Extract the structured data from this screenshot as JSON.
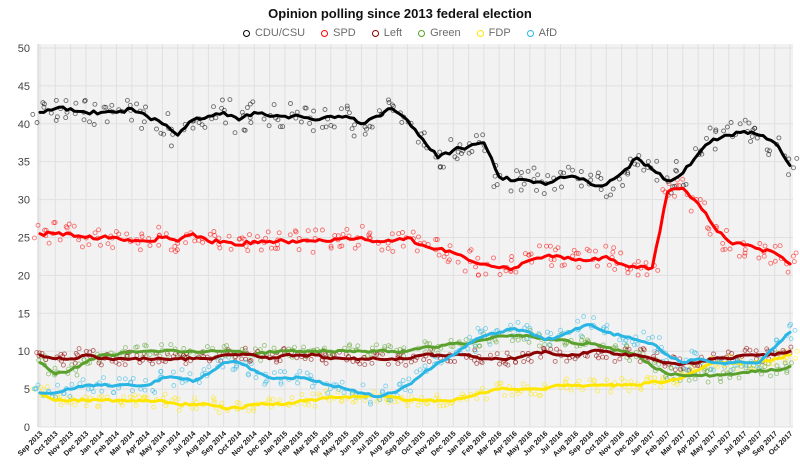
{
  "chart_data": {
    "type": "line",
    "style": "scatter points with thick trend lines (poll results + moving average)",
    "title": "Opinion polling since 2013 federal election",
    "xlabel": "",
    "ylabel": "",
    "ylim": [
      0,
      50
    ],
    "y_ticks": [
      0,
      5,
      10,
      15,
      20,
      25,
      30,
      35,
      40,
      45,
      50
    ],
    "grid": true,
    "legend_position": "top",
    "plot_background": "#f2f2f2",
    "gridline_color": "#e0e0e0",
    "axis_label_color": "#444444",
    "x_tick_labels": [
      "Sep 2013",
      "Oct 2013",
      "Nov 2013",
      "Dec 2013",
      "Jan 2014",
      "Feb 2014",
      "Mar 2014",
      "Apr 2014",
      "May 2014",
      "Jun 2014",
      "Jul 2014",
      "Aug 2014",
      "Sep 2014",
      "Oct 2014",
      "Nov 2014",
      "Dec 2014",
      "Jan 2015",
      "Feb 2015",
      "Mar 2015",
      "Apr 2015",
      "May 2015",
      "Jun 2015",
      "Jul 2015",
      "Aug 2015",
      "Sep 2015",
      "Oct 2015",
      "Nov 2015",
      "Dec 2015",
      "Jan 2016",
      "Feb 2016",
      "Mar 2016",
      "Apr 2016",
      "May 2016",
      "Jun 2016",
      "Jul 2016",
      "Aug 2016",
      "Sep 2016",
      "Oct 2016",
      "Nov 2016",
      "Dec 2016",
      "Jan 2017",
      "Feb 2017",
      "Mar 2017",
      "Apr 2017",
      "May 2017",
      "Jun 2017",
      "Jul 2017",
      "Aug 2017",
      "Sep 2017",
      "Oct 2017"
    ],
    "series": [
      {
        "name": "CDU/CSU",
        "color": "#000000",
        "values": [
          41.5,
          42,
          42,
          41.5,
          41.5,
          41.5,
          42,
          41,
          40,
          38.5,
          40.5,
          41,
          41.5,
          40.5,
          41.5,
          41,
          41,
          41,
          40.5,
          41,
          41,
          40,
          41,
          42,
          40.5,
          38,
          35.5,
          36.5,
          37,
          37.5,
          33,
          32.5,
          32.5,
          32,
          33,
          33,
          32,
          32,
          33.5,
          35.5,
          34,
          32.5,
          33.5,
          36,
          38,
          38.5,
          39,
          38.5,
          37.5,
          34.5
        ]
      },
      {
        "name": "SPD",
        "color": "#ff0000",
        "values": [
          25.5,
          25.5,
          25.5,
          25,
          25,
          25,
          24.5,
          24.5,
          25,
          24.5,
          25.5,
          24.5,
          24.5,
          24,
          24.5,
          24.5,
          24.5,
          24.5,
          24.5,
          24.5,
          25,
          25,
          24.5,
          24.5,
          25,
          24,
          23.5,
          23,
          22,
          21.5,
          21,
          21,
          22,
          22.5,
          22.5,
          22,
          22,
          22.5,
          21.5,
          21,
          21,
          31,
          31.5,
          29.5,
          26.5,
          24.5,
          24,
          23.5,
          23,
          21.5
        ]
      },
      {
        "name": "Left",
        "color": "#8b0000",
        "values": [
          9.5,
          9,
          9,
          9.5,
          9,
          9,
          9,
          9,
          9,
          9,
          9,
          9,
          9.5,
          9.5,
          9.5,
          9,
          9.5,
          9.5,
          9.5,
          9,
          9,
          9,
          9,
          9,
          9,
          9.5,
          9.5,
          9.5,
          9.5,
          9,
          9,
          9,
          9.5,
          10,
          9.5,
          9.5,
          10,
          10,
          9.5,
          9.5,
          9,
          8.5,
          8.3,
          8.5,
          9,
          9,
          9.5,
          9.5,
          9.5,
          10
        ]
      },
      {
        "name": "Green",
        "color": "#5aa02c",
        "values": [
          8.5,
          7,
          7.5,
          8.5,
          9.5,
          9.5,
          10,
          10,
          10,
          10,
          10,
          10,
          10,
          10,
          9.5,
          10,
          10,
          10,
          10,
          10,
          10,
          10,
          10,
          10,
          10,
          10.5,
          10.5,
          11,
          11,
          11.5,
          12,
          12,
          12,
          11.5,
          11.5,
          11,
          11,
          10.5,
          10,
          9.5,
          8,
          7,
          6.8,
          6.8,
          6.8,
          7,
          7.2,
          7.5,
          7.5,
          8
        ]
      },
      {
        "name": "FDP",
        "color": "#ffe600",
        "values": [
          4.5,
          3.5,
          3.5,
          3.5,
          3.5,
          3.5,
          3.5,
          3.5,
          3.5,
          3,
          3,
          3,
          2.5,
          2.5,
          3,
          3,
          3,
          3.5,
          3.5,
          4,
          4,
          4,
          4,
          4,
          3.5,
          3.5,
          3.5,
          3.5,
          4,
          4.5,
          5,
          5,
          5,
          5,
          5.5,
          5.5,
          5.5,
          5.5,
          5.5,
          5.5,
          6,
          6,
          6.5,
          7.5,
          8.5,
          8.5,
          8.5,
          8.5,
          9,
          9.5
        ]
      },
      {
        "name": "AfD",
        "color": "#29b6e4",
        "values": [
          4.5,
          4.5,
          5,
          5.5,
          5.5,
          5.5,
          5.5,
          5.5,
          6.5,
          6.5,
          6,
          7,
          8.5,
          8.5,
          7.5,
          6.5,
          6.5,
          6.5,
          6,
          5.5,
          5,
          4.5,
          4,
          4.5,
          5.5,
          7,
          8.5,
          9.5,
          11,
          12,
          12.5,
          13,
          12.5,
          11.5,
          12,
          13,
          13.5,
          12.5,
          12,
          11.5,
          11,
          9.5,
          8.5,
          9,
          8.5,
          8.5,
          8.5,
          8.5,
          10.5,
          12.5
        ]
      }
    ]
  }
}
